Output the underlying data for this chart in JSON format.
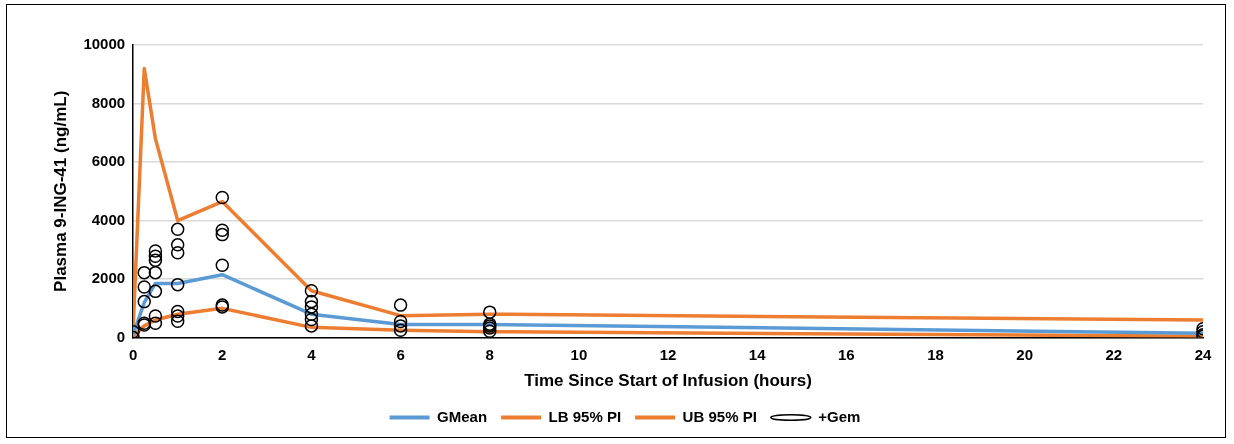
{
  "chart_data": {
    "type": "line",
    "xlabel": "Time Since Start of Infusion (hours)",
    "ylabel": "Plasma 9-ING-41 (ng/mL)",
    "xlim": [
      0,
      24
    ],
    "xticks": [
      0,
      2,
      4,
      6,
      8,
      10,
      12,
      14,
      16,
      18,
      20,
      22,
      24
    ],
    "ylim": [
      0,
      10000
    ],
    "yticks": [
      0,
      2000,
      4000,
      6000,
      8000,
      10000
    ],
    "grid": "y",
    "legend": "bottom",
    "series": [
      {
        "name": "GMean",
        "color": "#5b9bd5",
        "marker": "none",
        "x": [
          0,
          0.25,
          0.5,
          1,
          2,
          4,
          6,
          8,
          24
        ],
        "values": [
          100,
          1200,
          1850,
          1850,
          2150,
          800,
          450,
          450,
          150
        ]
      },
      {
        "name": "LB 95% PI",
        "color": "#ed7d31",
        "marker": "none",
        "x": [
          0,
          0.25,
          0.5,
          1,
          2,
          4,
          6,
          8,
          24
        ],
        "values": [
          50,
          400,
          600,
          800,
          1000,
          350,
          250,
          200,
          50
        ]
      },
      {
        "name": "UB 95% PI",
        "color": "#ed7d31",
        "marker": "none",
        "x": [
          0,
          0.25,
          0.5,
          1,
          2,
          4,
          6,
          8,
          24
        ],
        "values": [
          300,
          9200,
          6800,
          4000,
          4650,
          1600,
          750,
          800,
          600
        ]
      },
      {
        "name": "+Gem",
        "type": "scatter",
        "color": "#000000",
        "marker": "circle",
        "x": [
          0,
          0,
          0.25,
          0.25,
          0.25,
          0.25,
          0.25,
          0.5,
          0.5,
          0.5,
          0.5,
          0.5,
          0.5,
          0.5,
          1,
          1,
          1,
          1,
          1,
          1,
          1,
          2,
          2,
          2,
          2,
          2,
          2,
          4,
          4,
          4,
          4,
          4,
          4,
          6,
          6,
          6,
          6,
          8,
          8,
          8,
          8,
          8,
          24,
          24,
          24,
          24
        ],
        "values": [
          0,
          200,
          2220,
          1730,
          1230,
          490,
          430,
          2960,
          2780,
          2640,
          2220,
          1580,
          740,
          490,
          3700,
          3170,
          2900,
          1810,
          890,
          740,
          560,
          4790,
          3670,
          3520,
          2470,
          1110,
          1050,
          1600,
          1230,
          1050,
          800,
          620,
          400,
          1110,
          550,
          400,
          250,
          870,
          460,
          400,
          330,
          220,
          300,
          200,
          100,
          50
        ]
      }
    ]
  }
}
